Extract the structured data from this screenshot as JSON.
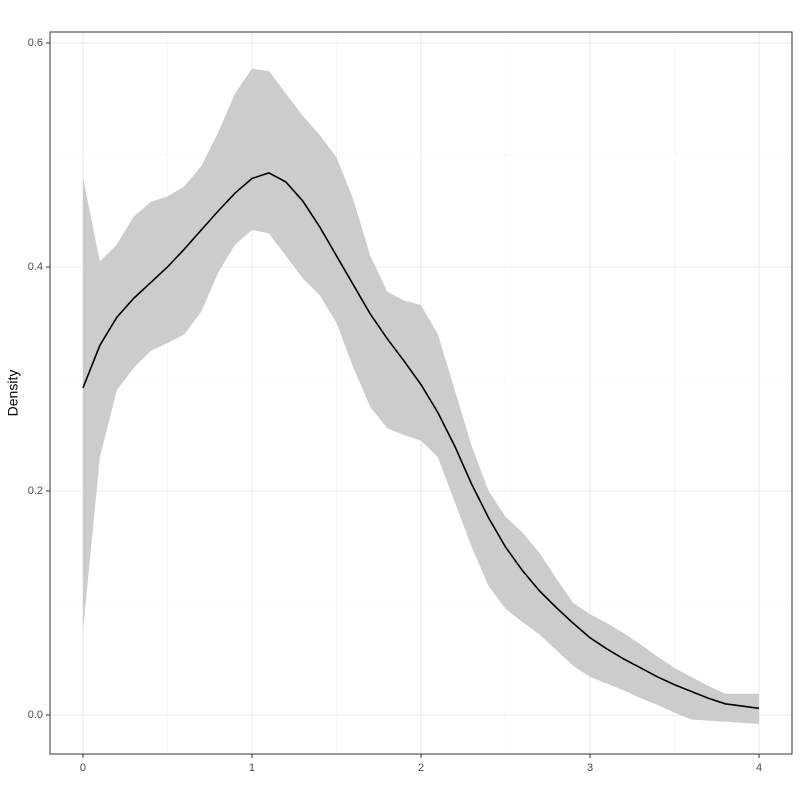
{
  "chart_data": {
    "type": "density_band",
    "y_label": "Density",
    "x": [
      0,
      0.1,
      0.2,
      0.3,
      0.4,
      0.5,
      0.6,
      0.7,
      0.8,
      0.9,
      1,
      1.1,
      1.2,
      1.3,
      1.4,
      1.5,
      1.6,
      1.7,
      1.8,
      1.9,
      2,
      2.1,
      2.2,
      2.3,
      2.4,
      2.5,
      2.6,
      2.7,
      2.8,
      2.9,
      3,
      3.1,
      3.2,
      3.3,
      3.4,
      3.5,
      3.6,
      3.7,
      3.8,
      3.9,
      4
    ],
    "values": [
      0.292,
      0.33,
      0.355,
      0.372,
      0.386,
      0.4,
      0.416,
      0.433,
      0.45,
      0.466,
      0.479,
      0.484,
      0.476,
      0.459,
      0.436,
      0.41,
      0.384,
      0.358,
      0.336,
      0.316,
      0.295,
      0.27,
      0.24,
      0.206,
      0.176,
      0.15,
      0.129,
      0.111,
      0.096,
      0.082,
      0.069,
      0.059,
      0.05,
      0.042,
      0.034,
      0.027,
      0.021,
      0.015,
      0.01,
      0.008,
      0.006
    ],
    "upper": [
      0.48,
      0.405,
      0.42,
      0.445,
      0.458,
      0.463,
      0.472,
      0.49,
      0.52,
      0.555,
      0.577,
      0.575,
      0.555,
      0.535,
      0.518,
      0.498,
      0.46,
      0.41,
      0.378,
      0.37,
      0.366,
      0.34,
      0.29,
      0.24,
      0.2,
      0.177,
      0.163,
      0.145,
      0.122,
      0.1,
      0.09,
      0.082,
      0.073,
      0.063,
      0.052,
      0.042,
      0.034,
      0.026,
      0.019,
      0.019,
      0.019
    ],
    "lower": [
      0.075,
      0.23,
      0.29,
      0.31,
      0.325,
      0.332,
      0.34,
      0.36,
      0.395,
      0.42,
      0.433,
      0.43,
      0.41,
      0.39,
      0.375,
      0.35,
      0.31,
      0.275,
      0.256,
      0.25,
      0.245,
      0.23,
      0.19,
      0.15,
      0.115,
      0.095,
      0.083,
      0.072,
      0.058,
      0.044,
      0.034,
      0.028,
      0.022,
      0.015,
      0.009,
      0.002,
      -0.004,
      -0.005,
      -0.006,
      -0.007,
      -0.008
    ],
    "line_color": "#000000",
    "band_color": "#cccccc",
    "xlim": [
      -0.195,
      4.195
    ],
    "ylim": [
      -0.0348,
      0.6098
    ],
    "xticks": [
      0,
      1,
      2,
      3,
      4
    ],
    "yticks": [
      {
        "value": 0,
        "label": "0.0"
      },
      0.2,
      0.4,
      0.6
    ],
    "x_minor_ticks": [
      0.5,
      1.5,
      2.5,
      3.5
    ],
    "y_minor_ticks": [
      0.1,
      0.3,
      0.5
    ],
    "grid": true
  }
}
